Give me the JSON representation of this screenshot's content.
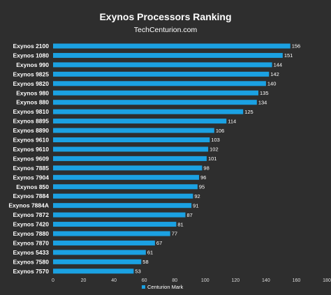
{
  "chart_data": {
    "type": "bar",
    "orientation": "horizontal",
    "title": "Exynos Processors Ranking",
    "subtitle": "TechCenturion.com",
    "categories": [
      "Exynos 2100",
      "Exynos 1080",
      "Exynos 990",
      "Exynos 9825",
      "Exynos 9820",
      "Exynos 980",
      "Exynos 880",
      "Exynos 9810",
      "Exynos 8895",
      "Exynos 8890",
      "Exynos 9610",
      "Exynos 9610",
      "Exynos 9609",
      "Exynos 7885",
      "Exynos 7904",
      "Exynos 850",
      "Exynos 7884",
      "Exynos 7884A",
      "Exynos 7872",
      "Exynos 7420",
      "Exynos 7880",
      "Exynos 7870",
      "Exynos 5433",
      "Exynos 7580",
      "Exynos 7570"
    ],
    "series": [
      {
        "name": "Centurion Mark",
        "values": [
          156,
          151,
          144,
          142,
          140,
          135,
          134,
          125,
          114,
          106,
          103,
          102,
          101,
          98,
          96,
          95,
          92,
          91,
          87,
          81,
          77,
          67,
          61,
          58,
          53
        ]
      }
    ],
    "xlim": [
      0,
      180
    ],
    "xticks": [
      0,
      20,
      40,
      60,
      80,
      100,
      120,
      140,
      160,
      180
    ],
    "bar_color": "#1ba1e2",
    "background": "#2e2e2e",
    "legend_position": "bottom",
    "grid": false
  }
}
